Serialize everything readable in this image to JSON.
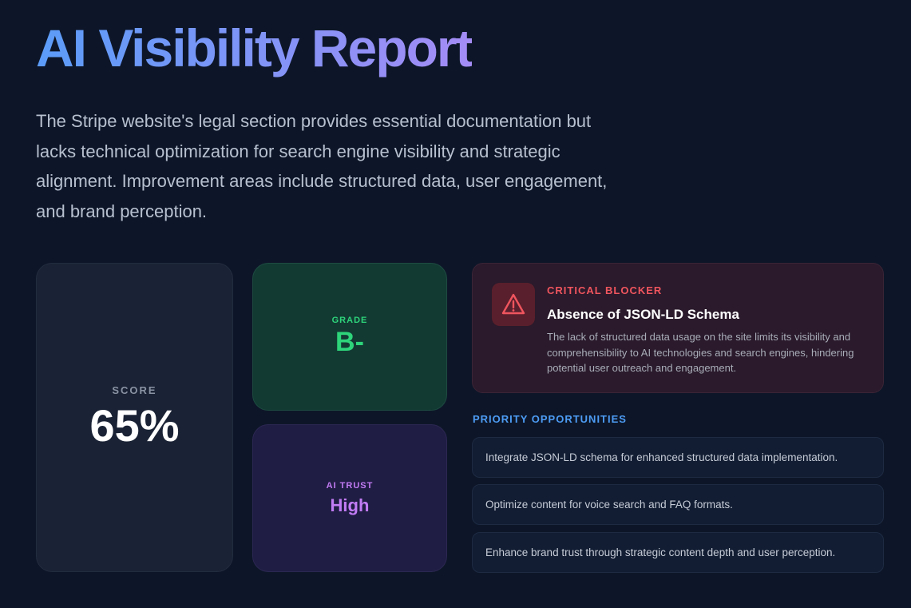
{
  "header": {
    "title": "AI Visibility Report",
    "summary": "The Stripe website's legal section provides essential documentation but lacks technical optimization for search engine visibility and strategic alignment. Improvement areas include structured data, user engagement, and brand perception."
  },
  "score": {
    "label": "SCORE",
    "value": "65%"
  },
  "grade": {
    "label": "GRADE",
    "value": "B-"
  },
  "ai_trust": {
    "label": "AI TRUST",
    "value": "High"
  },
  "critical_blocker": {
    "label": "CRITICAL BLOCKER",
    "title": "Absence of JSON-LD Schema",
    "description": "The lack of structured data usage on the site limits its visibility and comprehensibility to AI technologies and search engines, hindering potential user outreach and engagement."
  },
  "priority_opportunities": {
    "heading": "PRIORITY OPPORTUNITIES",
    "items": [
      "Integrate JSON-LD schema for enhanced structured data implementation.",
      "Optimize content for voice search and FAQ formats.",
      "Enhance brand trust through strategic content depth and user perception."
    ]
  }
}
